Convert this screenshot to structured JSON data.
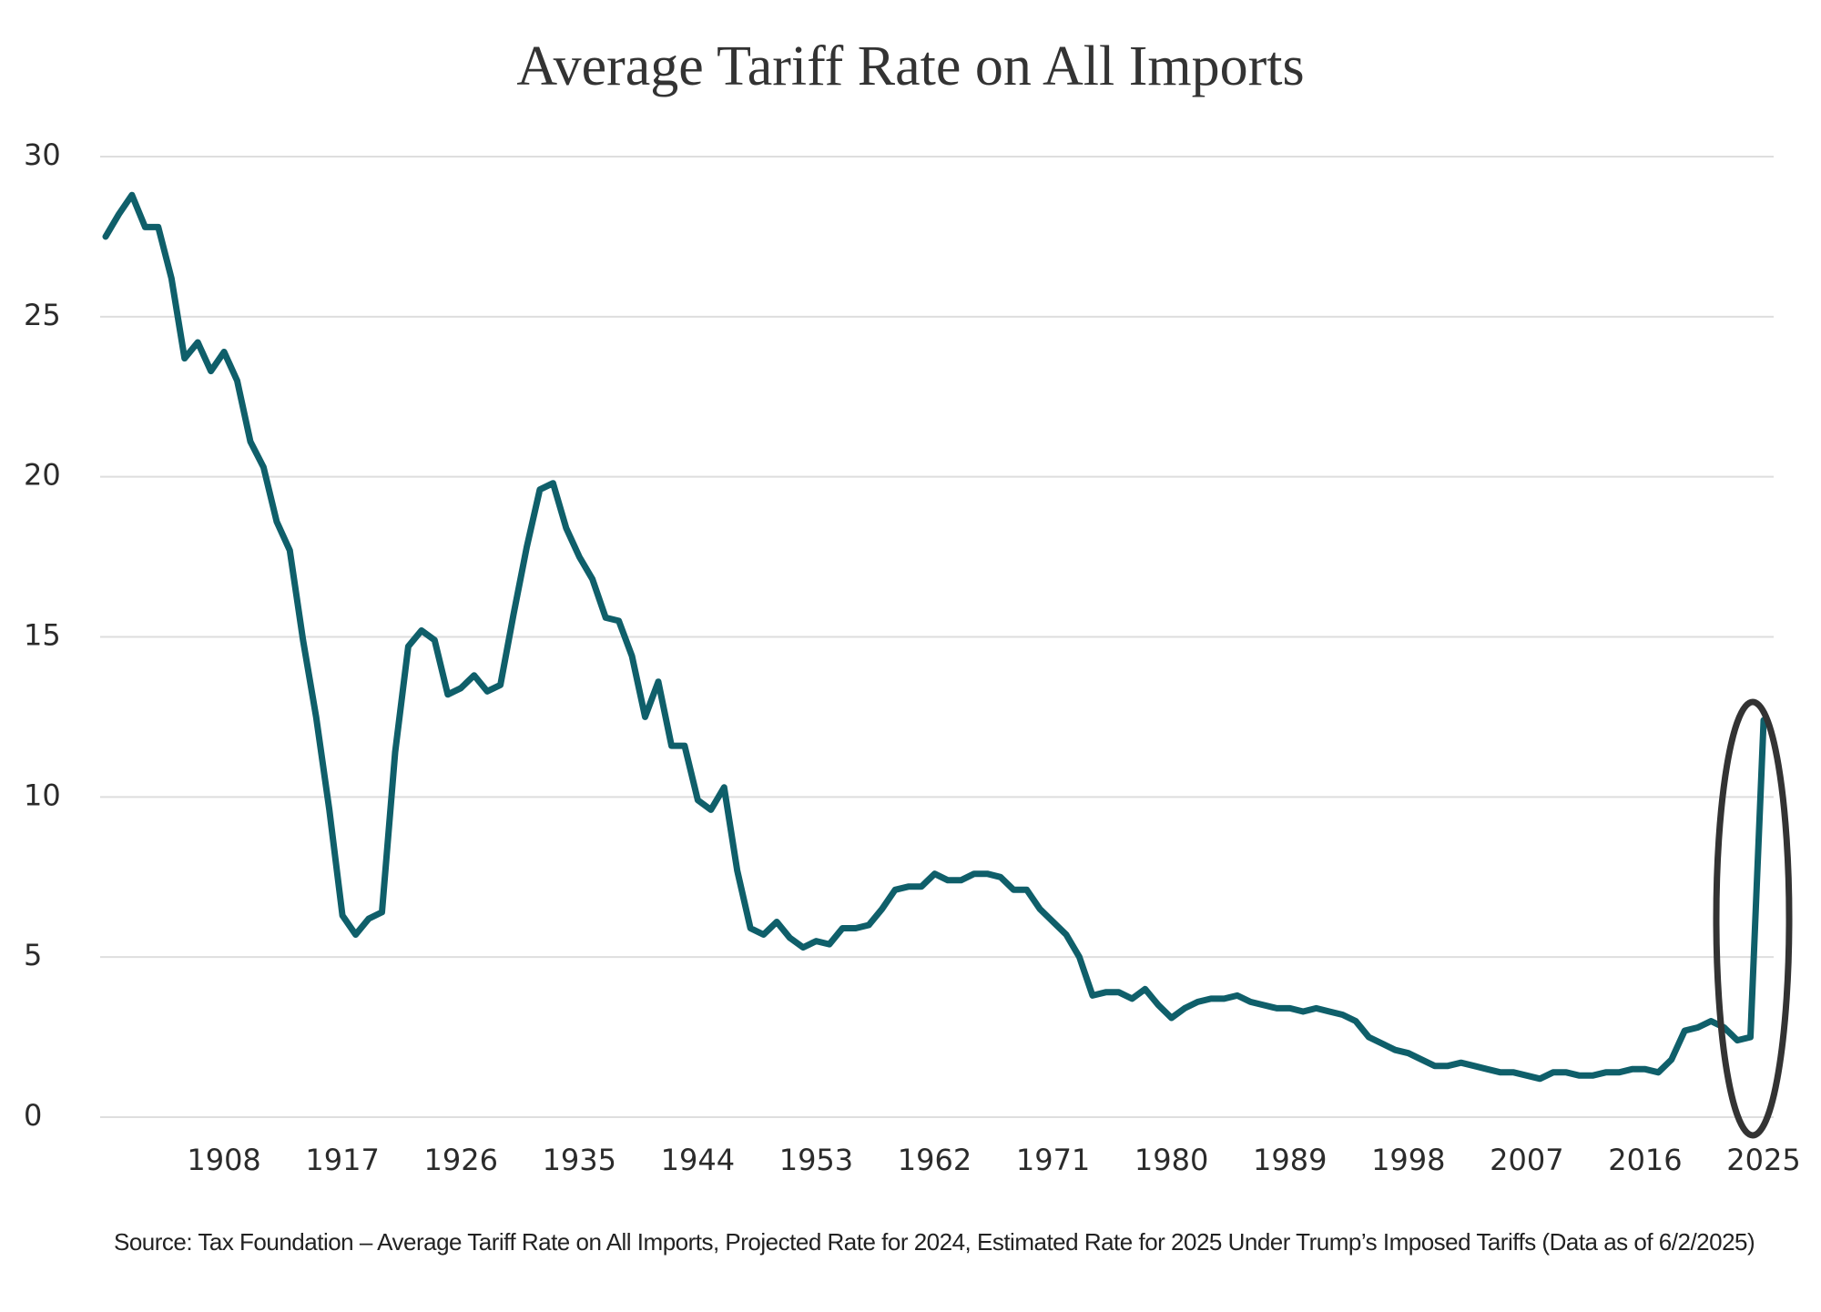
{
  "chart_data": {
    "type": "line",
    "title": "Average Tariff Rate on All Imports",
    "source": "Source: Tax Foundation – Average Tariff Rate on All Imports, Projected Rate for 2024, Estimated Rate for 2025 Under Trump’s Imposed Tariffs (Data as of 6/2/2025)",
    "color": "#0f5f6a",
    "grid": true,
    "x": [
      1899,
      1900,
      1901,
      1902,
      1903,
      1904,
      1905,
      1906,
      1907,
      1908,
      1909,
      1910,
      1911,
      1912,
      1913,
      1914,
      1915,
      1916,
      1917,
      1918,
      1919,
      1920,
      1921,
      1922,
      1923,
      1924,
      1925,
      1926,
      1927,
      1928,
      1929,
      1930,
      1931,
      1932,
      1933,
      1934,
      1935,
      1936,
      1937,
      1938,
      1939,
      1940,
      1941,
      1942,
      1943,
      1944,
      1945,
      1946,
      1947,
      1948,
      1949,
      1950,
      1951,
      1952,
      1953,
      1954,
      1955,
      1956,
      1957,
      1958,
      1959,
      1960,
      1961,
      1962,
      1963,
      1964,
      1965,
      1966,
      1967,
      1968,
      1969,
      1970,
      1971,
      1972,
      1973,
      1974,
      1975,
      1976,
      1977,
      1978,
      1979,
      1980,
      1981,
      1982,
      1983,
      1984,
      1985,
      1986,
      1987,
      1988,
      1989,
      1990,
      1991,
      1992,
      1993,
      1994,
      1995,
      1996,
      1997,
      1998,
      1999,
      2000,
      2001,
      2002,
      2003,
      2004,
      2005,
      2006,
      2007,
      2008,
      2009,
      2010,
      2011,
      2012,
      2013,
      2014,
      2015,
      2016,
      2017,
      2018,
      2019,
      2020,
      2021,
      2022,
      2023,
      2024,
      2025
    ],
    "values": [
      27.5,
      28.2,
      28.8,
      27.8,
      27.8,
      26.2,
      23.7,
      24.2,
      23.3,
      23.9,
      23.0,
      21.1,
      20.3,
      18.6,
      17.7,
      14.9,
      12.5,
      9.6,
      6.3,
      5.7,
      6.2,
      6.4,
      11.4,
      14.7,
      15.2,
      14.9,
      13.2,
      13.4,
      13.8,
      13.3,
      13.5,
      15.7,
      17.8,
      19.6,
      19.8,
      18.4,
      17.5,
      16.8,
      15.6,
      15.5,
      14.4,
      12.5,
      13.6,
      11.6,
      11.6,
      9.9,
      9.6,
      10.3,
      7.7,
      5.9,
      5.7,
      6.1,
      5.6,
      5.3,
      5.5,
      5.4,
      5.9,
      5.9,
      6.0,
      6.5,
      7.1,
      7.2,
      7.2,
      7.6,
      7.4,
      7.4,
      7.6,
      7.6,
      7.5,
      7.1,
      7.1,
      6.5,
      6.1,
      5.7,
      5.0,
      3.8,
      3.9,
      3.9,
      3.7,
      4.0,
      3.5,
      3.1,
      3.4,
      3.6,
      3.7,
      3.7,
      3.8,
      3.6,
      3.5,
      3.4,
      3.4,
      3.3,
      3.4,
      3.3,
      3.2,
      3.0,
      2.5,
      2.3,
      2.1,
      2.0,
      1.8,
      1.6,
      1.6,
      1.7,
      1.6,
      1.5,
      1.4,
      1.4,
      1.3,
      1.2,
      1.4,
      1.4,
      1.3,
      1.3,
      1.4,
      1.4,
      1.5,
      1.5,
      1.4,
      1.8,
      2.7,
      2.8,
      3.0,
      2.8,
      2.4,
      2.5,
      12.4
    ],
    "xlim": [
      1899,
      2025
    ],
    "xticks": [
      1908,
      1917,
      1926,
      1935,
      1944,
      1953,
      1962,
      1971,
      1980,
      1989,
      1998,
      2007,
      2016,
      2025
    ],
    "ylim": [
      0,
      30
    ],
    "yticks": [
      0,
      5,
      10,
      15,
      20,
      25,
      30
    ]
  }
}
